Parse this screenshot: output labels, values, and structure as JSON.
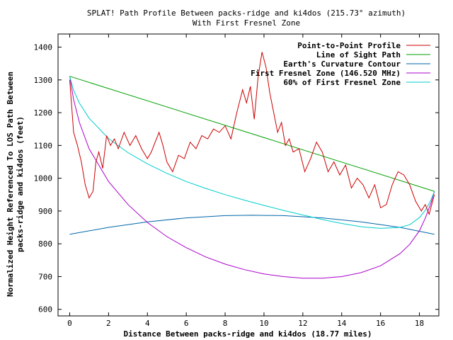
{
  "chart_data": {
    "type": "line",
    "title": "SPLAT! Path Profile Between packs-ridge and ki4dos (215.73° azimuth)",
    "subtitle": "With First Fresnel Zone",
    "xlabel": "Distance Between packs-ridge and ki4dos (18.77 miles)",
    "ylabel_line1": "Normalized Height Referenced To LOS Path Between",
    "ylabel_line2": "packs-ridge and ki4dos (feet)",
    "xlim": [
      -0.6,
      19.0
    ],
    "ylim": [
      580,
      1440
    ],
    "x_ticks": [
      0,
      2,
      4,
      6,
      8,
      10,
      12,
      14,
      16,
      18
    ],
    "y_ticks": [
      600,
      700,
      800,
      900,
      1000,
      1100,
      1200,
      1300,
      1400
    ],
    "grid": false,
    "legend_position": "top-right",
    "series": [
      {
        "name": "Point-to-Point Profile",
        "color": "#cc0000",
        "x": [
          0,
          0.2,
          0.4,
          0.6,
          0.8,
          1.0,
          1.2,
          1.35,
          1.5,
          1.7,
          1.9,
          2.1,
          2.3,
          2.5,
          2.8,
          3.1,
          3.4,
          3.7,
          4.0,
          4.2,
          4.4,
          4.6,
          4.8,
          5.0,
          5.3,
          5.6,
          5.9,
          6.2,
          6.5,
          6.8,
          7.1,
          7.4,
          7.7,
          8.0,
          8.3,
          8.6,
          8.9,
          9.1,
          9.3,
          9.5,
          9.7,
          9.9,
          10.1,
          10.3,
          10.5,
          10.7,
          10.9,
          11.1,
          11.3,
          11.5,
          11.8,
          12.1,
          12.4,
          12.7,
          13.0,
          13.3,
          13.6,
          13.9,
          14.2,
          14.5,
          14.8,
          15.1,
          15.4,
          15.7,
          16.0,
          16.3,
          16.6,
          16.9,
          17.2,
          17.5,
          17.8,
          18.1,
          18.3,
          18.5,
          18.77
        ],
        "y": [
          1300,
          1140,
          1100,
          1050,
          980,
          940,
          960,
          1050,
          1080,
          1030,
          1130,
          1100,
          1120,
          1090,
          1140,
          1100,
          1130,
          1090,
          1060,
          1080,
          1110,
          1140,
          1100,
          1050,
          1020,
          1070,
          1060,
          1110,
          1090,
          1130,
          1120,
          1150,
          1140,
          1160,
          1120,
          1200,
          1270,
          1230,
          1280,
          1180,
          1310,
          1385,
          1340,
          1260,
          1200,
          1140,
          1170,
          1100,
          1120,
          1080,
          1090,
          1020,
          1060,
          1110,
          1080,
          1020,
          1050,
          1010,
          1040,
          970,
          1000,
          980,
          940,
          980,
          910,
          920,
          980,
          1020,
          1010,
          980,
          930,
          900,
          920,
          890,
          950
        ]
      },
      {
        "name": "Line of Sight Path",
        "color": "#00a000",
        "x": [
          0,
          18.77
        ],
        "y": [
          1311,
          960
        ]
      },
      {
        "name": "Earth's Curvature Contour",
        "color": "#0066aa",
        "x": [
          0,
          2,
          4,
          6,
          8,
          9.4,
          11,
          13,
          15,
          17,
          18.77
        ],
        "y": [
          829,
          850,
          867,
          879,
          886,
          887,
          886,
          879,
          867,
          850,
          829
        ]
      },
      {
        "name": "First Fresnel Zone (146.520 MHz)",
        "color": "#aa00cc",
        "x": [
          0,
          0.2,
          0.5,
          1,
          2,
          3,
          4,
          5,
          6,
          7,
          8,
          9,
          10,
          11,
          12,
          13,
          14,
          15,
          16,
          17,
          17.5,
          18,
          18.3,
          18.6,
          18.77
        ],
        "y": [
          1311,
          1240,
          1170,
          1090,
          990,
          920,
          865,
          822,
          788,
          760,
          738,
          721,
          708,
          700,
          695,
          695,
          700,
          712,
          733,
          770,
          798,
          840,
          878,
          925,
          960
        ]
      },
      {
        "name": "60% of First Fresnel Zone",
        "color": "#00cccc",
        "x": [
          0,
          0.2,
          0.5,
          1,
          2,
          3,
          4,
          5,
          6,
          7,
          8,
          9,
          10,
          11,
          12,
          13,
          14,
          15,
          16,
          17,
          17.5,
          18,
          18.3,
          18.6,
          18.77
        ],
        "y": [
          1311,
          1268,
          1229,
          1183,
          1121,
          1078,
          1044,
          1015,
          990,
          969,
          950,
          933,
          917,
          902,
          888,
          874,
          862,
          852,
          847,
          850,
          858,
          880,
          902,
          934,
          960
        ]
      }
    ]
  }
}
